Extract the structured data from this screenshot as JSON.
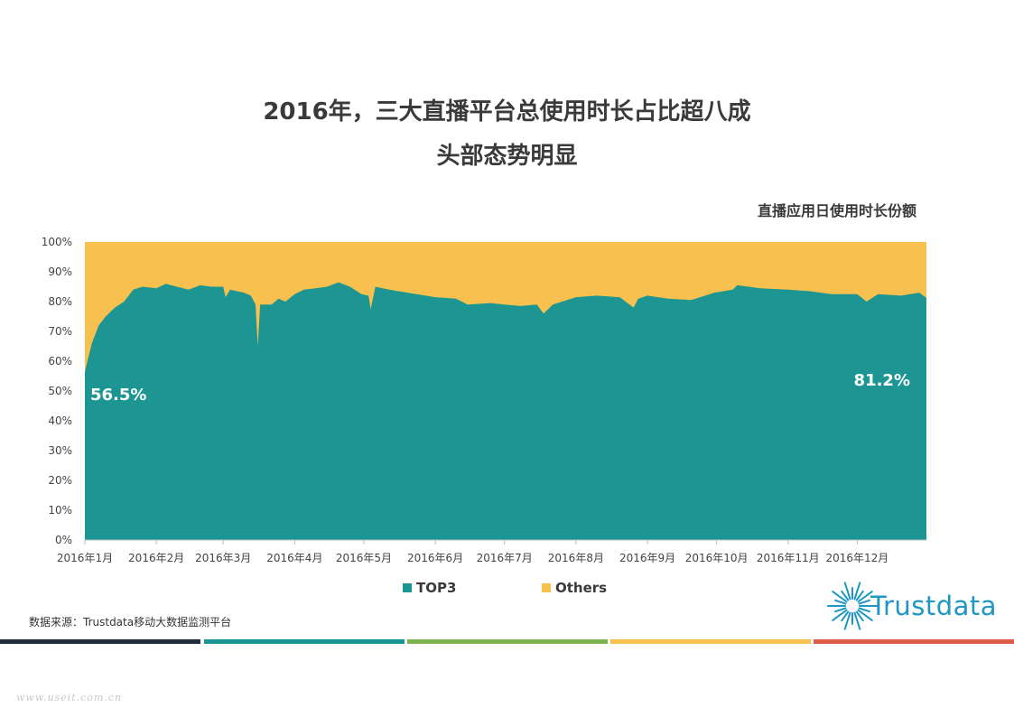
{
  "title_line1": "2016年，三大直播平台总使用时长占比超八成",
  "title_line2": "头部态势明显",
  "subtitle": "直播应用日使用时长份额",
  "source": "数据来源：Trustdata移动大数据监测平台",
  "logo": "Trustdata",
  "watermark": "www.useit.com.cn",
  "colors": {
    "top3": "#1d9593",
    "others": "#f8c04f",
    "logo": "#1f97c4",
    "bands": [
      "#1f2d3d",
      "#1d9593",
      "#7cb34a",
      "#f8c04f",
      "#e05a48"
    ]
  },
  "chart_data": {
    "type": "area",
    "stacked": true,
    "percent": true,
    "y_tick_labels": [
      "0%",
      "10%",
      "20%",
      "30%",
      "40%",
      "50%",
      "60%",
      "70%",
      "80%",
      "90%",
      "100%"
    ],
    "ylim": [
      0,
      100
    ],
    "x_tick_labels": [
      "2016年1月",
      "2016年2月",
      "2016年3月",
      "2016年4月",
      "2016年5月",
      "2016年6月",
      "2016年7月",
      "2016年8月",
      "2016年9月",
      "2016年10月",
      "2016年11月",
      "2016年12月"
    ],
    "series": [
      {
        "name": "TOP3",
        "color": "#1d9593",
        "points": [
          [
            "2016-01-01",
            56.5
          ],
          [
            "2016-01-04",
            66
          ],
          [
            "2016-01-07",
            72
          ],
          [
            "2016-01-10",
            75
          ],
          [
            "2016-01-14",
            78
          ],
          [
            "2016-01-18",
            80
          ],
          [
            "2016-01-22",
            84
          ],
          [
            "2016-01-26",
            85
          ],
          [
            "2016-02-01",
            84.5
          ],
          [
            "2016-02-05",
            86
          ],
          [
            "2016-02-10",
            85
          ],
          [
            "2016-02-15",
            84
          ],
          [
            "2016-02-20",
            85.5
          ],
          [
            "2016-02-25",
            85
          ],
          [
            "2016-03-01",
            85
          ],
          [
            "2016-03-02",
            81.5
          ],
          [
            "2016-03-04",
            84
          ],
          [
            "2016-03-10",
            83
          ],
          [
            "2016-03-13",
            82
          ],
          [
            "2016-03-15",
            79
          ],
          [
            "2016-03-16",
            65
          ],
          [
            "2016-03-17",
            79
          ],
          [
            "2016-03-22",
            79
          ],
          [
            "2016-03-25",
            81
          ],
          [
            "2016-03-28",
            80
          ],
          [
            "2016-04-01",
            82.5
          ],
          [
            "2016-04-05",
            84
          ],
          [
            "2016-04-10",
            84.5
          ],
          [
            "2016-04-15",
            85
          ],
          [
            "2016-04-20",
            86.5
          ],
          [
            "2016-04-25",
            85
          ],
          [
            "2016-04-30",
            82.5
          ],
          [
            "2016-05-03",
            82
          ],
          [
            "2016-05-04",
            77.5
          ],
          [
            "2016-05-06",
            85
          ],
          [
            "2016-05-12",
            84
          ],
          [
            "2016-05-20",
            83
          ],
          [
            "2016-06-01",
            81.5
          ],
          [
            "2016-06-10",
            81
          ],
          [
            "2016-06-15",
            79
          ],
          [
            "2016-06-25",
            79.5
          ],
          [
            "2016-07-01",
            79
          ],
          [
            "2016-07-08",
            78.5
          ],
          [
            "2016-07-15",
            79
          ],
          [
            "2016-07-18",
            76
          ],
          [
            "2016-07-22",
            79
          ],
          [
            "2016-08-01",
            81.5
          ],
          [
            "2016-08-10",
            82
          ],
          [
            "2016-08-20",
            81.5
          ],
          [
            "2016-08-26",
            78
          ],
          [
            "2016-08-28",
            81
          ],
          [
            "2016-09-01",
            82
          ],
          [
            "2016-09-10",
            81
          ],
          [
            "2016-09-20",
            80.5
          ],
          [
            "2016-09-30",
            83
          ],
          [
            "2016-10-08",
            84
          ],
          [
            "2016-10-10",
            85.5
          ],
          [
            "2016-10-20",
            84.5
          ],
          [
            "2016-11-01",
            84
          ],
          [
            "2016-11-10",
            83.5
          ],
          [
            "2016-11-20",
            82.5
          ],
          [
            "2016-12-01",
            82.5
          ],
          [
            "2016-12-05",
            80
          ],
          [
            "2016-12-10",
            82.5
          ],
          [
            "2016-12-20",
            82
          ],
          [
            "2016-12-28",
            83
          ],
          [
            "2016-12-31",
            81.2
          ]
        ]
      },
      {
        "name": "Others",
        "color": "#f8c04f",
        "complement_of": "TOP3"
      }
    ],
    "annotations": [
      "56.5%",
      "81.2%"
    ],
    "legend": "bottom-center",
    "grid": false
  }
}
